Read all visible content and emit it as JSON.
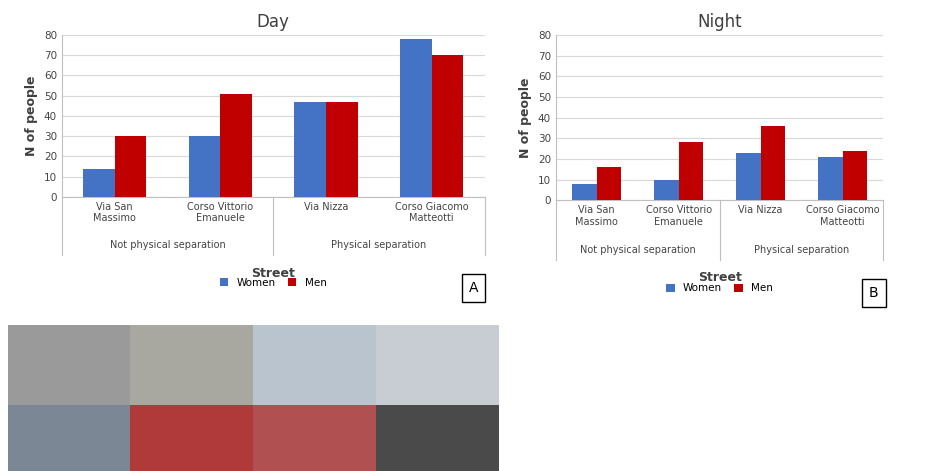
{
  "chart_data": [
    {
      "type": "bar",
      "title": "Day",
      "panel": "A",
      "x_label": "Street",
      "y_label": "N of people",
      "categories": [
        "Via San Massimo",
        "Corso Vittorio Emanuele",
        "Via Nizza",
        "Corso Giacomo Matteotti"
      ],
      "groups": [
        {
          "name": "Not physical separation",
          "categories": [
            "Via San Massimo",
            "Corso Vittorio Emanuele"
          ]
        },
        {
          "name": "Physical separation",
          "categories": [
            "Via Nizza",
            "Corso Giacomo Matteotti"
          ]
        }
      ],
      "series": [
        {
          "name": "Women",
          "color": "#4472c4",
          "values": [
            14,
            30,
            47,
            78
          ]
        },
        {
          "name": "Men",
          "color": "#c00000",
          "values": [
            30,
            51,
            47,
            70
          ]
        }
      ],
      "ylim": [
        0,
        80
      ],
      "yticks": [
        0,
        10,
        20,
        30,
        40,
        50,
        60,
        70,
        80
      ],
      "grid": true,
      "legend": "lower center"
    },
    {
      "type": "bar",
      "title": "Night",
      "panel": "B",
      "x_label": "Street",
      "y_label": "N of people",
      "categories": [
        "Via San Massimo",
        "Corso Vittorio Emanuele",
        "Via Nizza",
        "Corso Giacomo Matteotti"
      ],
      "groups": [
        {
          "name": "Not physical separation",
          "categories": [
            "Via San Massimo",
            "Corso Vittorio Emanuele"
          ]
        },
        {
          "name": "Physical separation",
          "categories": [
            "Via Nizza",
            "Corso Giacomo Matteotti"
          ]
        }
      ],
      "series": [
        {
          "name": "Women",
          "color": "#4472c4",
          "values": [
            8,
            10,
            23,
            21
          ]
        },
        {
          "name": "Men",
          "color": "#c00000",
          "values": [
            16,
            28,
            36,
            24
          ]
        }
      ],
      "ylim": [
        0,
        80
      ],
      "yticks": [
        0,
        10,
        20,
        30,
        40,
        50,
        60,
        70,
        80
      ],
      "grid": true,
      "legend": "lower center"
    }
  ]
}
